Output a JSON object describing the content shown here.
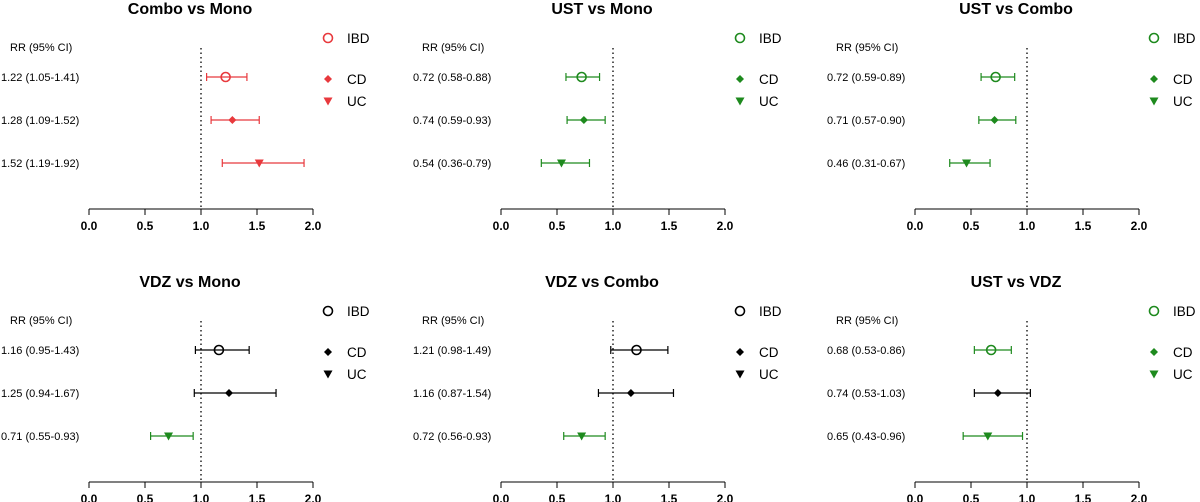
{
  "colors": {
    "red": "#e8393d",
    "green": "#1e8a1e",
    "black": "#000000"
  },
  "chart_data": [
    {
      "type": "forest",
      "title": "Combo vs Mono",
      "column_header": "RR (95% CI)",
      "xlim": [
        0.0,
        2.0
      ],
      "xticks": [
        "0.0",
        "0.5",
        "1.0",
        "1.5",
        "2.0"
      ],
      "reference": 1.0,
      "legend": [
        "IBD",
        "CD",
        "UC"
      ],
      "color": "red",
      "point_colors": [
        "red",
        "red",
        "red"
      ],
      "rows": [
        {
          "group": "IBD",
          "label": "1.22 (1.05-1.41)",
          "rr": 1.22,
          "lo": 1.05,
          "hi": 1.41
        },
        {
          "group": "CD",
          "label": "1.28 (1.09-1.52)",
          "rr": 1.28,
          "lo": 1.09,
          "hi": 1.52
        },
        {
          "group": "UC",
          "label": "1.52 (1.19-1.92)",
          "rr": 1.52,
          "lo": 1.19,
          "hi": 1.92
        }
      ]
    },
    {
      "type": "forest",
      "title": "UST vs Mono",
      "column_header": "RR (95% CI)",
      "xlim": [
        0.0,
        2.0
      ],
      "xticks": [
        "0.0",
        "0.5",
        "1.0",
        "1.5",
        "2.0"
      ],
      "reference": 1.0,
      "legend": [
        "IBD",
        "CD",
        "UC"
      ],
      "color": "green",
      "point_colors": [
        "green",
        "green",
        "green"
      ],
      "rows": [
        {
          "group": "IBD",
          "label": "0.72 (0.58-0.88)",
          "rr": 0.72,
          "lo": 0.58,
          "hi": 0.88
        },
        {
          "group": "CD",
          "label": "0.74 (0.59-0.93)",
          "rr": 0.74,
          "lo": 0.59,
          "hi": 0.93
        },
        {
          "group": "UC",
          "label": "0.54 (0.36-0.79)",
          "rr": 0.54,
          "lo": 0.36,
          "hi": 0.79
        }
      ]
    },
    {
      "type": "forest",
      "title": "UST vs Combo",
      "column_header": "RR (95% CI)",
      "xlim": [
        0.0,
        2.0
      ],
      "xticks": [
        "0.0",
        "0.5",
        "1.0",
        "1.5",
        "2.0"
      ],
      "reference": 1.0,
      "legend": [
        "IBD",
        "CD",
        "UC"
      ],
      "color": "green",
      "point_colors": [
        "green",
        "green",
        "green"
      ],
      "rows": [
        {
          "group": "IBD",
          "label": "0.72 (0.59-0.89)",
          "rr": 0.72,
          "lo": 0.59,
          "hi": 0.89
        },
        {
          "group": "CD",
          "label": "0.71 (0.57-0.90)",
          "rr": 0.71,
          "lo": 0.57,
          "hi": 0.9
        },
        {
          "group": "UC",
          "label": "0.46 (0.31-0.67)",
          "rr": 0.46,
          "lo": 0.31,
          "hi": 0.67
        }
      ]
    },
    {
      "type": "forest",
      "title": "VDZ vs Mono",
      "column_header": "RR (95% CI)",
      "xlim": [
        0.0,
        2.0
      ],
      "xticks": [
        "0.0",
        "0.5",
        "1.0",
        "1.5",
        "2.0"
      ],
      "reference": 1.0,
      "legend": [
        "IBD",
        "CD",
        "UC"
      ],
      "color": "black",
      "point_colors": [
        "black",
        "black",
        "green"
      ],
      "rows": [
        {
          "group": "IBD",
          "label": "1.16 (0.95-1.43)",
          "rr": 1.16,
          "lo": 0.95,
          "hi": 1.43
        },
        {
          "group": "CD",
          "label": "1.25 (0.94-1.67)",
          "rr": 1.25,
          "lo": 0.94,
          "hi": 1.67
        },
        {
          "group": "UC",
          "label": "0.71 (0.55-0.93)",
          "rr": 0.71,
          "lo": 0.55,
          "hi": 0.93
        }
      ]
    },
    {
      "type": "forest",
      "title": "VDZ vs Combo",
      "column_header": "RR (95% CI)",
      "xlim": [
        0.0,
        2.0
      ],
      "xticks": [
        "0.0",
        "0.5",
        "1.0",
        "1.5",
        "2.0"
      ],
      "reference": 1.0,
      "legend": [
        "IBD",
        "CD",
        "UC"
      ],
      "color": "black",
      "point_colors": [
        "black",
        "black",
        "green"
      ],
      "rows": [
        {
          "group": "IBD",
          "label": "1.21 (0.98-1.49)",
          "rr": 1.21,
          "lo": 0.98,
          "hi": 1.49
        },
        {
          "group": "CD",
          "label": "1.16 (0.87-1.54)",
          "rr": 1.16,
          "lo": 0.87,
          "hi": 1.54
        },
        {
          "group": "UC",
          "label": "0.72 (0.56-0.93)",
          "rr": 0.72,
          "lo": 0.56,
          "hi": 0.93
        }
      ]
    },
    {
      "type": "forest",
      "title": "UST vs VDZ",
      "column_header": "RR (95% CI)",
      "xlim": [
        0.0,
        2.0
      ],
      "xticks": [
        "0.0",
        "0.5",
        "1.0",
        "1.5",
        "2.0"
      ],
      "reference": 1.0,
      "legend": [
        "IBD",
        "CD",
        "UC"
      ],
      "color": "green",
      "point_colors": [
        "green",
        "black",
        "green"
      ],
      "rows": [
        {
          "group": "IBD",
          "label": "0.68 (0.53-0.86)",
          "rr": 0.68,
          "lo": 0.53,
          "hi": 0.86
        },
        {
          "group": "CD",
          "label": "0.74 (0.53-1.03)",
          "rr": 0.74,
          "lo": 0.53,
          "hi": 1.03
        },
        {
          "group": "UC",
          "label": "0.65 (0.43-0.96)",
          "rr": 0.65,
          "lo": 0.43,
          "hi": 0.96
        }
      ]
    }
  ]
}
